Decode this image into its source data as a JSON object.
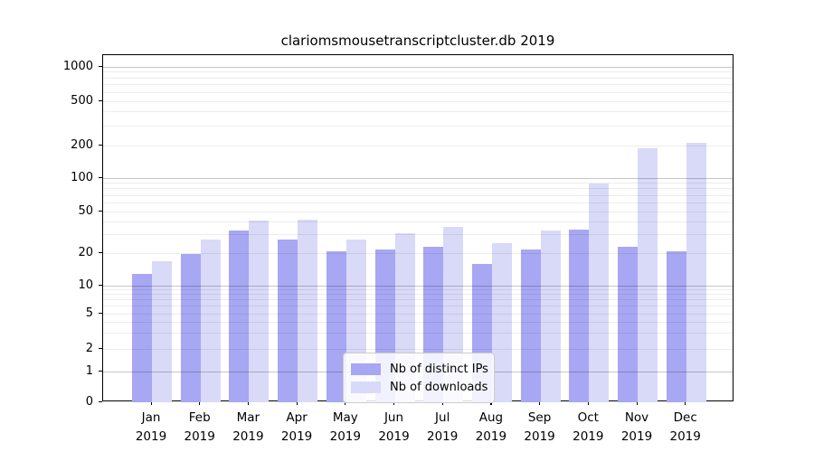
{
  "chart_data": {
    "type": "bar",
    "title": "clariomsmousetranscriptcluster.db 2019",
    "year_label": "2019",
    "categories": [
      "Jan",
      "Feb",
      "Mar",
      "Apr",
      "May",
      "Jun",
      "Jul",
      "Aug",
      "Sep",
      "Oct",
      "Nov",
      "Dec"
    ],
    "series": [
      {
        "name": "Nb of distinct IPs",
        "color": "#a7a7f3",
        "values": [
          13,
          20,
          33,
          27,
          21,
          22,
          23,
          16,
          22,
          34,
          23,
          21
        ]
      },
      {
        "name": "Nb of downloads",
        "color": "#d9d9f8",
        "values": [
          17,
          27,
          41,
          42,
          27,
          31,
          36,
          25,
          33,
          90,
          190,
          210
        ]
      }
    ],
    "y_axis": {
      "scale": "symlog",
      "tick_labels": [
        "0",
        "1",
        "2",
        "5",
        "10",
        "20",
        "50",
        "100",
        "200",
        "500",
        "1000"
      ],
      "ticks": [
        0,
        1,
        2,
        5,
        10,
        20,
        50,
        100,
        200,
        500,
        1000
      ],
      "ylim": [
        0,
        1200
      ]
    },
    "x_axis": {
      "label_format": "month over year, two lines"
    },
    "legend": {
      "position": "lower-center"
    },
    "grid": "on, drawn over bars; major lines at powers of ten, faint minor lines",
    "colors": {
      "background": "#ffffff",
      "axis": "#000000",
      "major_grid": "#c8c8c8",
      "minor_grid": "#ececec"
    }
  }
}
